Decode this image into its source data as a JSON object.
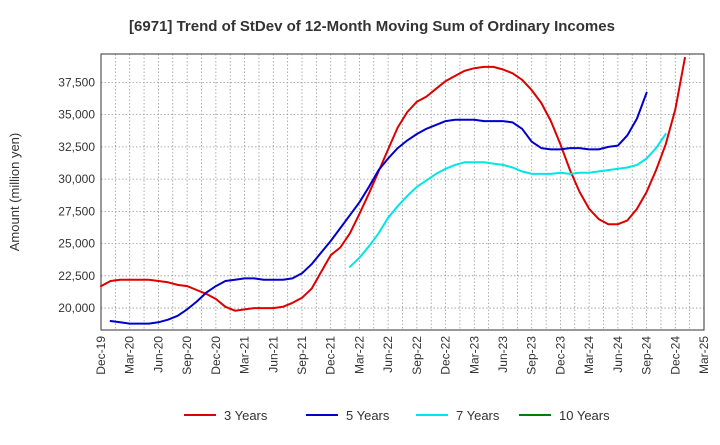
{
  "chart_data": {
    "type": "line",
    "title": "[6971]  Trend of StDev of 12-Month Moving Sum of Ordinary Incomes",
    "xlabel": "",
    "ylabel": "Amount (million yen)",
    "x_tick_labels": [
      "Dec-19",
      "Mar-20",
      "Jun-20",
      "Sep-20",
      "Dec-20",
      "Mar-21",
      "Jun-21",
      "Sep-21",
      "Dec-21",
      "Mar-22",
      "Jun-22",
      "Sep-22",
      "Dec-22",
      "Mar-23",
      "Jun-23",
      "Sep-23",
      "Dec-23",
      "Mar-24",
      "Jun-24",
      "Sep-24",
      "Dec-24",
      "Mar-25"
    ],
    "y_ticks": [
      20000,
      22500,
      25000,
      27500,
      30000,
      32500,
      35000,
      37500
    ],
    "y_tick_labels": [
      "20,000",
      "22,500",
      "25,000",
      "27,500",
      "30,000",
      "32,500",
      "35,000",
      "37,500"
    ],
    "ylim": [
      18300,
      39700
    ],
    "xlim_months": [
      0,
      63
    ],
    "grid": true,
    "legend_position": "bottom",
    "series": [
      {
        "name": "3 Years",
        "color": "#dd0000",
        "start_month": 0,
        "values": [
          21700,
          22100,
          22200,
          22200,
          22200,
          22200,
          22100,
          22000,
          21800,
          21700,
          21400,
          21100,
          20700,
          20100,
          19800,
          19900,
          20000,
          20000,
          20000,
          20100,
          20400,
          20800,
          21500,
          22800,
          24100,
          24700,
          25800,
          27300,
          28900,
          30600,
          32300,
          34000,
          35200,
          36000,
          36400,
          37000,
          37600,
          38000,
          38400,
          38600,
          38700,
          38700,
          38500,
          38200,
          37700,
          36900,
          35900,
          34500,
          32700,
          30700,
          29000,
          27700,
          26900,
          26500,
          26500,
          26800,
          27700,
          29000,
          30700,
          32700,
          35400,
          39400
        ]
      },
      {
        "name": "5 Years",
        "color": "#0000cc",
        "start_month": 1,
        "values": [
          19000,
          18900,
          18800,
          18800,
          18800,
          18900,
          19100,
          19400,
          19900,
          20500,
          21200,
          21700,
          22100,
          22200,
          22300,
          22300,
          22200,
          22200,
          22200,
          22300,
          22700,
          23400,
          24300,
          25200,
          26200,
          27200,
          28200,
          29400,
          30700,
          31600,
          32400,
          33000,
          33500,
          33900,
          34200,
          34500,
          34600,
          34600,
          34600,
          34500,
          34500,
          34500,
          34400,
          33900,
          32900,
          32400,
          32300,
          32300,
          32400,
          32400,
          32300,
          32300,
          32500,
          32600,
          33400,
          34700,
          36700
        ]
      },
      {
        "name": "7 Years",
        "color": "#00e6e6",
        "start_month": 26,
        "values": [
          23200,
          23900,
          24800,
          25800,
          27000,
          27900,
          28700,
          29400,
          29900,
          30400,
          30800,
          31100,
          31300,
          31300,
          31300,
          31200,
          31100,
          30900,
          30600,
          30400,
          30400,
          30400,
          30500,
          30400,
          30500,
          30500,
          30600,
          30700,
          30800,
          30900,
          31100,
          31600,
          32400,
          33500
        ]
      },
      {
        "name": "10 Years",
        "color": "#008000",
        "start_month": 0,
        "values": []
      }
    ]
  }
}
